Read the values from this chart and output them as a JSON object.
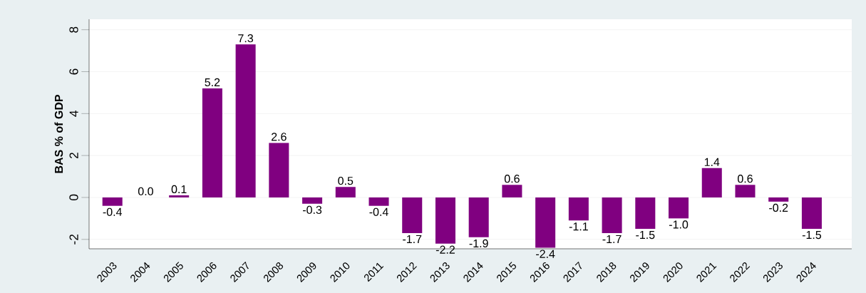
{
  "chart_data": {
    "type": "bar",
    "ylabel": "BAS % of GDP",
    "categories": [
      "2003",
      "2004",
      "2005",
      "2006",
      "2007",
      "2008",
      "2009",
      "2010",
      "2011",
      "2012",
      "2013",
      "2014",
      "2015",
      "2016",
      "2017",
      "2018",
      "2019",
      "2020",
      "2021",
      "2022",
      "2023",
      "2024"
    ],
    "values": [
      -0.4,
      0.0,
      0.1,
      5.2,
      7.3,
      2.6,
      -0.3,
      0.5,
      -0.4,
      -1.7,
      -2.2,
      -1.9,
      0.6,
      -2.4,
      -1.1,
      -1.7,
      -1.5,
      -1.0,
      1.4,
      0.6,
      -0.2,
      -1.5
    ],
    "value_labels": [
      "-0.4",
      "0.0",
      "0.1",
      "5.2",
      "7.3",
      "2.6",
      "-0.3",
      "0.5",
      "-0.4",
      "-1.7",
      "-2.2",
      "-1.9",
      "0.6",
      "-2.4",
      "-1.1",
      "-1.7",
      "-1.5",
      "-1.0",
      "1.4",
      "0.6",
      "-0.2",
      "-1.5"
    ],
    "color": "#800080",
    "ylim": [
      -2.45,
      8.5
    ],
    "yticks": [
      -2,
      0,
      2,
      4,
      6,
      8
    ],
    "grid": "y"
  }
}
